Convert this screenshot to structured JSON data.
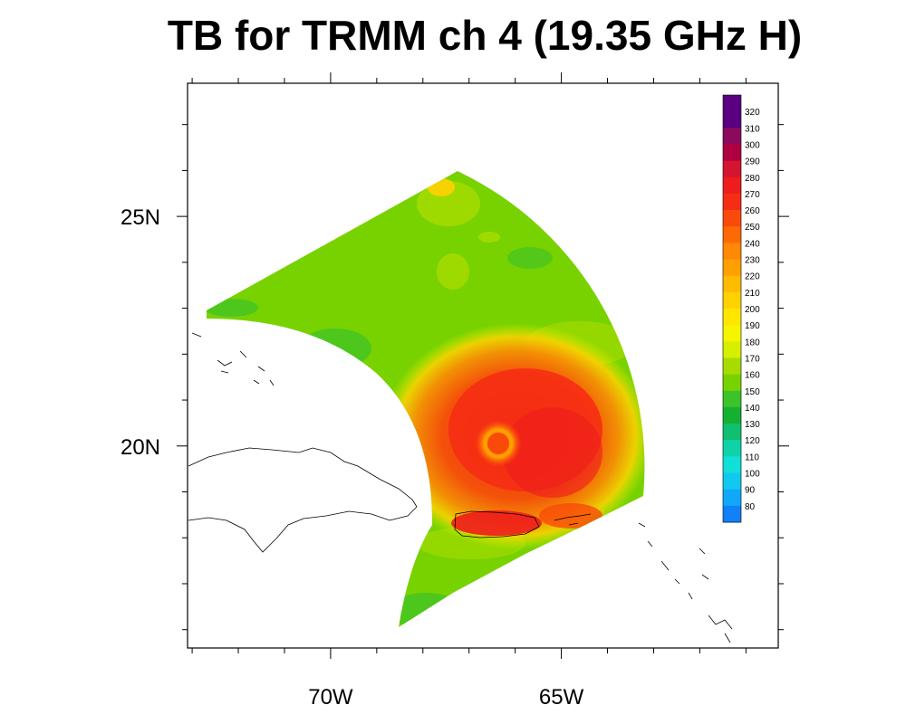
{
  "title": "TB for TRMM ch 4 (19.35 GHz H)",
  "axes": {
    "x_ticks": [
      {
        "label": "70W",
        "lon": -70
      },
      {
        "label": "65W",
        "lon": -65
      }
    ],
    "y_ticks": [
      {
        "label": "25N",
        "lat": 25
      },
      {
        "label": "20N",
        "lat": 20
      }
    ],
    "lon_range": [
      -73.1,
      -60.3
    ],
    "lat_range": [
      15.6,
      27.9
    ]
  },
  "colorbar": {
    "labels": [
      "320",
      "310",
      "300",
      "290",
      "280",
      "270",
      "260",
      "250",
      "240",
      "230",
      "220",
      "210",
      "200",
      "190",
      "180",
      "170",
      "160",
      "150",
      "140",
      "130",
      "120",
      "110",
      "100",
      "90",
      "80"
    ],
    "colors": [
      "#5a0080",
      "#8b0a5e",
      "#b00040",
      "#d41530",
      "#ee1c1c",
      "#f62c14",
      "#fa4a0a",
      "#fd6a05",
      "#ff8805",
      "#ffa000",
      "#ffbb00",
      "#ffd200",
      "#ffe600",
      "#f5f500",
      "#d6f000",
      "#a8dc00",
      "#78d200",
      "#3cc22a",
      "#14b030",
      "#10c070",
      "#10d2a8",
      "#10e0d8",
      "#10c8f0",
      "#10a8f8",
      "#1280f8"
    ]
  },
  "data_field": {
    "center": {
      "lon": -66.4,
      "lat": 20.0
    },
    "eye_radius_deg": 0.55,
    "core_value": 280,
    "eye_value": 230,
    "background_value": 170
  }
}
